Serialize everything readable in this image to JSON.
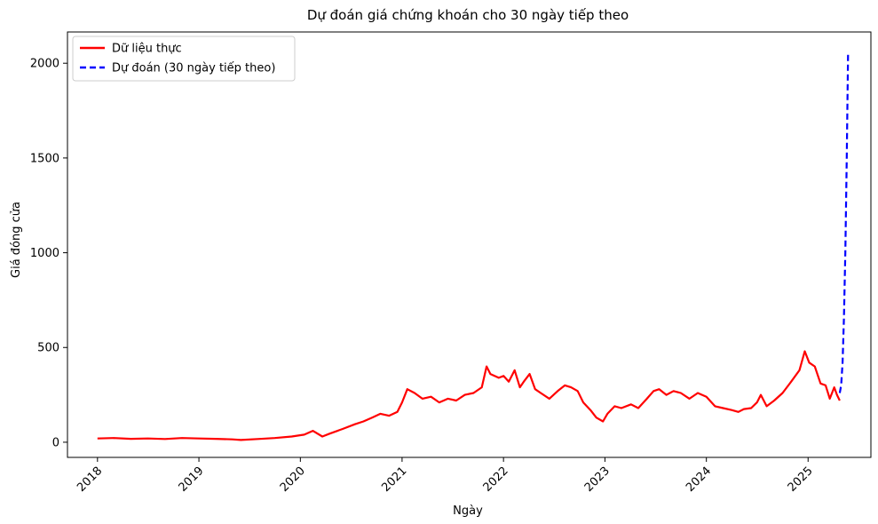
{
  "chart_data": {
    "type": "line",
    "title": "Dự đoán giá chứng khoán cho 30 ngày tiếp theo",
    "xlabel": "Ngày",
    "ylabel": "Giá đóng cửa",
    "x_ticks": [
      "2018",
      "2019",
      "2020",
      "2021",
      "2022",
      "2023",
      "2024",
      "2025"
    ],
    "y_ticks": [
      0,
      500,
      1000,
      1500,
      2000
    ],
    "xlim": [
      "2017-09-15",
      "2025-08-15"
    ],
    "ylim": [
      -80,
      2165
    ],
    "legend_position": "top-left",
    "grid": false,
    "series": [
      {
        "name": "Dữ liệu thực",
        "color": "#ff0000",
        "style": "solid",
        "x": [
          "2018-01-01",
          "2018-03-01",
          "2018-05-01",
          "2018-07-01",
          "2018-09-01",
          "2018-11-01",
          "2019-01-01",
          "2019-03-01",
          "2019-05-01",
          "2019-06-01",
          "2019-08-01",
          "2019-10-01",
          "2019-12-01",
          "2020-01-15",
          "2020-02-15",
          "2020-03-20",
          "2020-04-15",
          "2020-06-01",
          "2020-07-15",
          "2020-08-15",
          "2020-09-15",
          "2020-10-15",
          "2020-11-15",
          "2020-12-15",
          "2021-01-01",
          "2021-01-20",
          "2021-02-15",
          "2021-03-15",
          "2021-04-15",
          "2021-05-15",
          "2021-06-15",
          "2021-07-15",
          "2021-08-15",
          "2021-09-15",
          "2021-10-15",
          "2021-11-01",
          "2021-11-15",
          "2021-12-15",
          "2022-01-01",
          "2022-01-20",
          "2022-02-10",
          "2022-03-01",
          "2022-03-15",
          "2022-04-05",
          "2022-04-25",
          "2022-05-15",
          "2022-06-15",
          "2022-07-15",
          "2022-08-10",
          "2022-09-01",
          "2022-09-25",
          "2022-10-15",
          "2022-11-10",
          "2022-12-01",
          "2022-12-25",
          "2023-01-10",
          "2023-02-05",
          "2023-03-01",
          "2023-04-05",
          "2023-05-01",
          "2023-06-01",
          "2023-06-25",
          "2023-07-15",
          "2023-08-10",
          "2023-09-05",
          "2023-10-01",
          "2023-11-01",
          "2023-12-01",
          "2024-01-01",
          "2024-02-01",
          "2024-03-01",
          "2024-04-01",
          "2024-04-25",
          "2024-05-15",
          "2024-06-10",
          "2024-07-01",
          "2024-07-15",
          "2024-08-05",
          "2024-09-01",
          "2024-10-01",
          "2024-11-01",
          "2024-12-01",
          "2024-12-20",
          "2025-01-05",
          "2025-01-25",
          "2025-02-15",
          "2025-03-05",
          "2025-03-20",
          "2025-04-05",
          "2025-04-15",
          "2025-04-25"
        ],
        "values": [
          20,
          22,
          18,
          20,
          17,
          22,
          20,
          18,
          15,
          12,
          17,
          22,
          30,
          40,
          60,
          30,
          45,
          70,
          95,
          110,
          130,
          150,
          140,
          160,
          210,
          280,
          260,
          230,
          240,
          210,
          230,
          220,
          250,
          260,
          290,
          400,
          360,
          340,
          350,
          320,
          380,
          290,
          320,
          360,
          280,
          260,
          230,
          270,
          300,
          290,
          270,
          210,
          170,
          130,
          110,
          150,
          190,
          180,
          200,
          180,
          230,
          270,
          280,
          250,
          270,
          260,
          230,
          260,
          240,
          190,
          180,
          170,
          160,
          175,
          180,
          210,
          250,
          190,
          220,
          260,
          320,
          380,
          480,
          420,
          400,
          310,
          300,
          230,
          290,
          250,
          220
        ]
      },
      {
        "name": "Dự đoán (30 ngày tiếp theo)",
        "color": "#0000ff",
        "style": "dashed",
        "x": [
          "2025-04-25",
          "2025-04-30",
          "2025-05-05",
          "2025-05-10",
          "2025-05-15",
          "2025-05-20",
          "2025-05-25"
        ],
        "values": [
          260,
          300,
          420,
          650,
          1000,
          1500,
          2060
        ]
      }
    ]
  }
}
